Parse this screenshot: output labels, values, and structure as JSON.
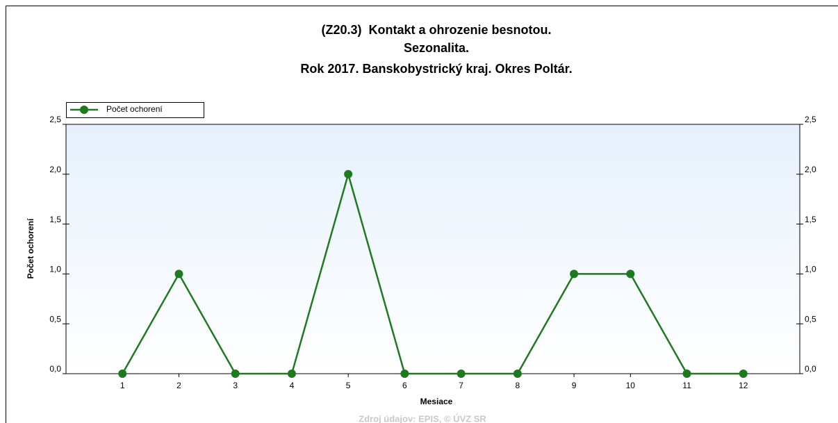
{
  "chart_data": {
    "type": "line",
    "title": [
      "(Z20.3)  Kontakt a ohrozenie besnotou.",
      "Sezonalita.",
      "Rok 2017. Banskobystrický kraj. Okres Poltár."
    ],
    "x_label": "Mesiace",
    "y_label": "Počet ochorení",
    "source": "Zdroj údajov: EPIS, © ÚVZ SR",
    "x": [
      1,
      2,
      3,
      4,
      5,
      6,
      7,
      8,
      9,
      10,
      11,
      12
    ],
    "series": [
      {
        "name": "Počet ochorení",
        "color": "#1f7a1f",
        "values": [
          0,
          1,
          0,
          0,
          2,
          0,
          0,
          0,
          1,
          1,
          0,
          0
        ]
      }
    ],
    "xlim": [
      0,
      13
    ],
    "xticks": [
      1,
      2,
      3,
      4,
      5,
      6,
      7,
      8,
      9,
      10,
      11,
      12
    ],
    "ylim": [
      0,
      2.5
    ],
    "yticks": [
      {
        "value": 0,
        "label": "0,0"
      },
      {
        "value": 0.5,
        "label": "0,5"
      },
      {
        "value": 1,
        "label": "1,0"
      },
      {
        "value": 1.5,
        "label": "1,5"
      },
      {
        "value": 2,
        "label": "2,0"
      },
      {
        "value": 2.5,
        "label": "2,5"
      }
    ],
    "legend": "upper left"
  }
}
